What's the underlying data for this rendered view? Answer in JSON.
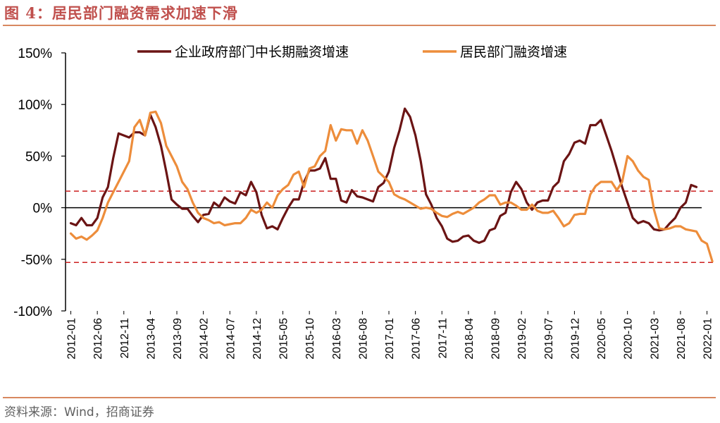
{
  "header": {
    "title": "图 4：居民部门融资需求加速下滑"
  },
  "footer": {
    "source": "资料来源：Wind，招商证券"
  },
  "colors": {
    "accent": "#c0504d",
    "rule": "#d88860",
    "series1": "#6b1414",
    "series2": "#ed8d3b",
    "refline": "#cc1f1f"
  },
  "chart_data": {
    "type": "line",
    "title": "居民部门融资需求加速下滑",
    "xlabel": "",
    "ylabel": "",
    "ylim": [
      -100,
      150
    ],
    "y_ticks": [
      150,
      100,
      50,
      0,
      -50,
      -100
    ],
    "y_tick_labels": [
      "150%",
      "100%",
      "50%",
      "0%",
      "-50%",
      "-100%"
    ],
    "x_tick_labels": [
      "2012-01",
      "2012-06",
      "2012-11",
      "2013-04",
      "2013-09",
      "2014-02",
      "2014-07",
      "2014-12",
      "2015-05",
      "2015-10",
      "2016-03",
      "2016-08",
      "2017-01",
      "2017-06",
      "2017-11",
      "2018-04",
      "2018-09",
      "2019-02",
      "2019-07",
      "2019-12",
      "2020-05",
      "2020-10",
      "2021-03",
      "2021-08",
      "2022-01"
    ],
    "start": "2012-01",
    "reference_lines": [
      16,
      -53
    ],
    "legend_position": "top",
    "series": [
      {
        "name": "企业政府部门中长期融资增速",
        "color": "#6b1414",
        "values": [
          -15,
          -17,
          -10,
          -17,
          -17,
          -10,
          10,
          20,
          48,
          72,
          70,
          68,
          73,
          73,
          70,
          90,
          78,
          60,
          35,
          8,
          3,
          -1,
          -1,
          -8,
          -14,
          -7,
          -6,
          5,
          1,
          10,
          6,
          4,
          15,
          12,
          25,
          15,
          -7,
          -20,
          -18,
          -21,
          -10,
          0,
          8,
          8,
          25,
          36,
          36,
          38,
          48,
          28,
          28,
          7,
          5,
          17,
          11,
          10,
          8,
          6,
          20,
          24,
          35,
          58,
          75,
          96,
          88,
          70,
          45,
          13,
          3,
          -10,
          -18,
          -30,
          -33,
          -32,
          -28,
          -27,
          -32,
          -34,
          -32,
          -22,
          -20,
          -8,
          -5,
          15,
          25,
          18,
          5,
          -2,
          5,
          7,
          7,
          20,
          25,
          45,
          52,
          63,
          65,
          62,
          80,
          80,
          85,
          70,
          55,
          38,
          20,
          5,
          -10,
          -15,
          -13,
          -15,
          -21,
          -22,
          -21,
          -15,
          -10,
          0,
          5,
          22,
          20
        ]
      },
      {
        "name": "居民部门融资增速",
        "color": "#ed8d3b",
        "values": [
          -25,
          -30,
          -28,
          -31,
          -27,
          -22,
          -10,
          5,
          15,
          25,
          35,
          45,
          78,
          85,
          70,
          92,
          93,
          82,
          60,
          50,
          40,
          25,
          18,
          5,
          -5,
          -10,
          -12,
          -15,
          -14,
          -17,
          -16,
          -15,
          -15,
          -10,
          -2,
          -5,
          -2,
          5,
          0,
          12,
          18,
          22,
          32,
          35,
          20,
          38,
          40,
          50,
          55,
          80,
          65,
          76,
          75,
          75,
          62,
          75,
          65,
          50,
          35,
          30,
          25,
          13,
          10,
          8,
          5,
          2,
          -1,
          0,
          -1,
          -5,
          -8,
          -9,
          -6,
          -4,
          -6,
          -3,
          0,
          5,
          8,
          12,
          12,
          3,
          5,
          5,
          2,
          -2,
          -2,
          3,
          -3,
          -5,
          -5,
          -3,
          -10,
          -18,
          -15,
          -7,
          -6,
          -6,
          13,
          21,
          25,
          25,
          25,
          17,
          25,
          50,
          45,
          36,
          30,
          27,
          -2,
          -20,
          -21,
          -20,
          -18,
          -18,
          -21,
          -22,
          -23,
          -32,
          -35,
          -52
        ]
      }
    ]
  }
}
